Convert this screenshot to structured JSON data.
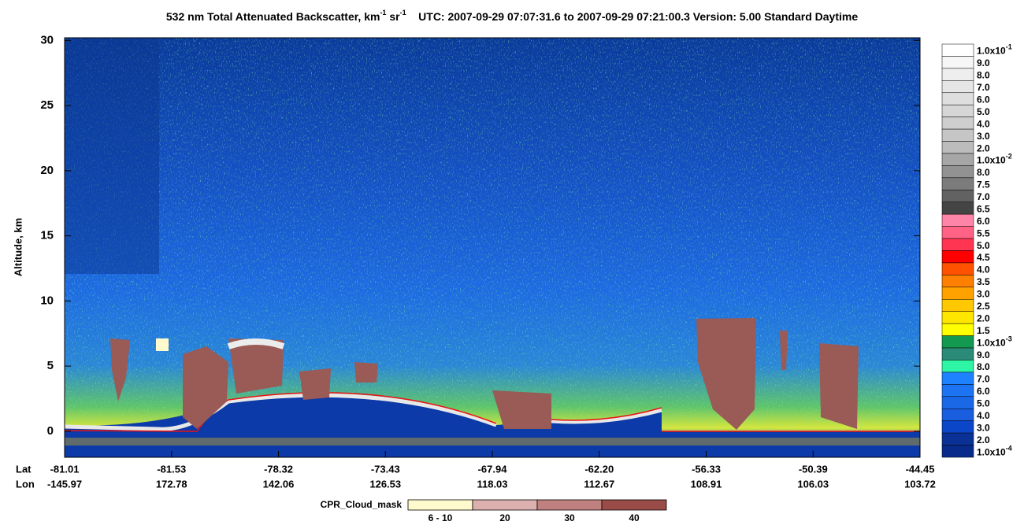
{
  "chart_data": {
    "type": "curtain",
    "title": {
      "main": "532 nm Total Attenuated Backscatter, km",
      "sup1": "-1",
      "mid": " sr",
      "sup2": "-1",
      "rest": "UTC:  2007-09-29 07:07:31.6  to  2007-09-29 07:21:00.3    Version: 5.00  Standard  Daytime"
    },
    "y_label": "Altitude, km",
    "ylim": [
      -2,
      30.2
    ],
    "yticks": [
      0,
      5,
      10,
      15,
      20,
      25,
      30
    ],
    "x_row_labels": [
      "Lat",
      "Lon"
    ],
    "lat": [
      "-81.01",
      "-81.53",
      "-78.32",
      "-73.43",
      "-67.94",
      "-62.20",
      "-56.33",
      "-50.39",
      "-44.45"
    ],
    "lon": [
      "-145.97",
      "172.78",
      "142.06",
      "126.53",
      "118.03",
      "112.67",
      "108.91",
      "106.03",
      "103.72"
    ],
    "colorbar": [
      {
        "label": "1.0x10",
        "sup": "-1",
        "color": "#ffffff"
      },
      {
        "label": "9.0",
        "color": "#f6f6f6"
      },
      {
        "label": "8.0",
        "color": "#eeeeee"
      },
      {
        "label": "7.0",
        "color": "#e6e6e6"
      },
      {
        "label": "6.0",
        "color": "#dedede"
      },
      {
        "label": "5.0",
        "color": "#d6d6d6"
      },
      {
        "label": "4.0",
        "color": "#cecece"
      },
      {
        "label": "3.0",
        "color": "#c6c6c6"
      },
      {
        "label": "2.0",
        "color": "#bcbcbc"
      },
      {
        "label": "1.0x10",
        "sup": "-2",
        "color": "#a6a6a6"
      },
      {
        "label": "8.0",
        "color": "#929292"
      },
      {
        "label": "7.5",
        "color": "#7c7c7c"
      },
      {
        "label": "7.0",
        "color": "#626262"
      },
      {
        "label": "6.5",
        "color": "#444444"
      },
      {
        "label": "6.0",
        "color": "#ff85a8"
      },
      {
        "label": "5.5",
        "color": "#ff6284"
      },
      {
        "label": "5.0",
        "color": "#ff3552"
      },
      {
        "label": "4.5",
        "color": "#ff0000"
      },
      {
        "label": "4.0",
        "color": "#ff5200"
      },
      {
        "label": "3.5",
        "color": "#ff7f00"
      },
      {
        "label": "3.0",
        "color": "#ffa200"
      },
      {
        "label": "2.5",
        "color": "#ffc800"
      },
      {
        "label": "2.0",
        "color": "#ffe600"
      },
      {
        "label": "1.5",
        "color": "#ffff00"
      },
      {
        "label": "1.0x10",
        "sup": "-3",
        "color": "#149a50"
      },
      {
        "label": "9.0",
        "color": "#2a8c78"
      },
      {
        "label": "8.0",
        "color": "#2ef5a5"
      },
      {
        "label": "7.0",
        "color": "#1e82ff"
      },
      {
        "label": "6.0",
        "color": "#1c74f2"
      },
      {
        "label": "5.0",
        "color": "#1a68e6"
      },
      {
        "label": "4.0",
        "color": "#1a5ee0"
      },
      {
        "label": "3.0",
        "color": "#0c46c8"
      },
      {
        "label": "2.0",
        "color": "#0a3296"
      },
      {
        "label": "1.0x10",
        "sup": "-4",
        "color": "#082a8a"
      }
    ],
    "cloud_mask": {
      "title": "CPR_Cloud_mask",
      "classes": [
        {
          "label": "6 - 10",
          "color": "#fffacd"
        },
        {
          "label": "20",
          "color": "#dcb0ae"
        },
        {
          "label": "30",
          "color": "#c08080"
        },
        {
          "label": "40",
          "color": "#9a4c48"
        }
      ]
    }
  }
}
